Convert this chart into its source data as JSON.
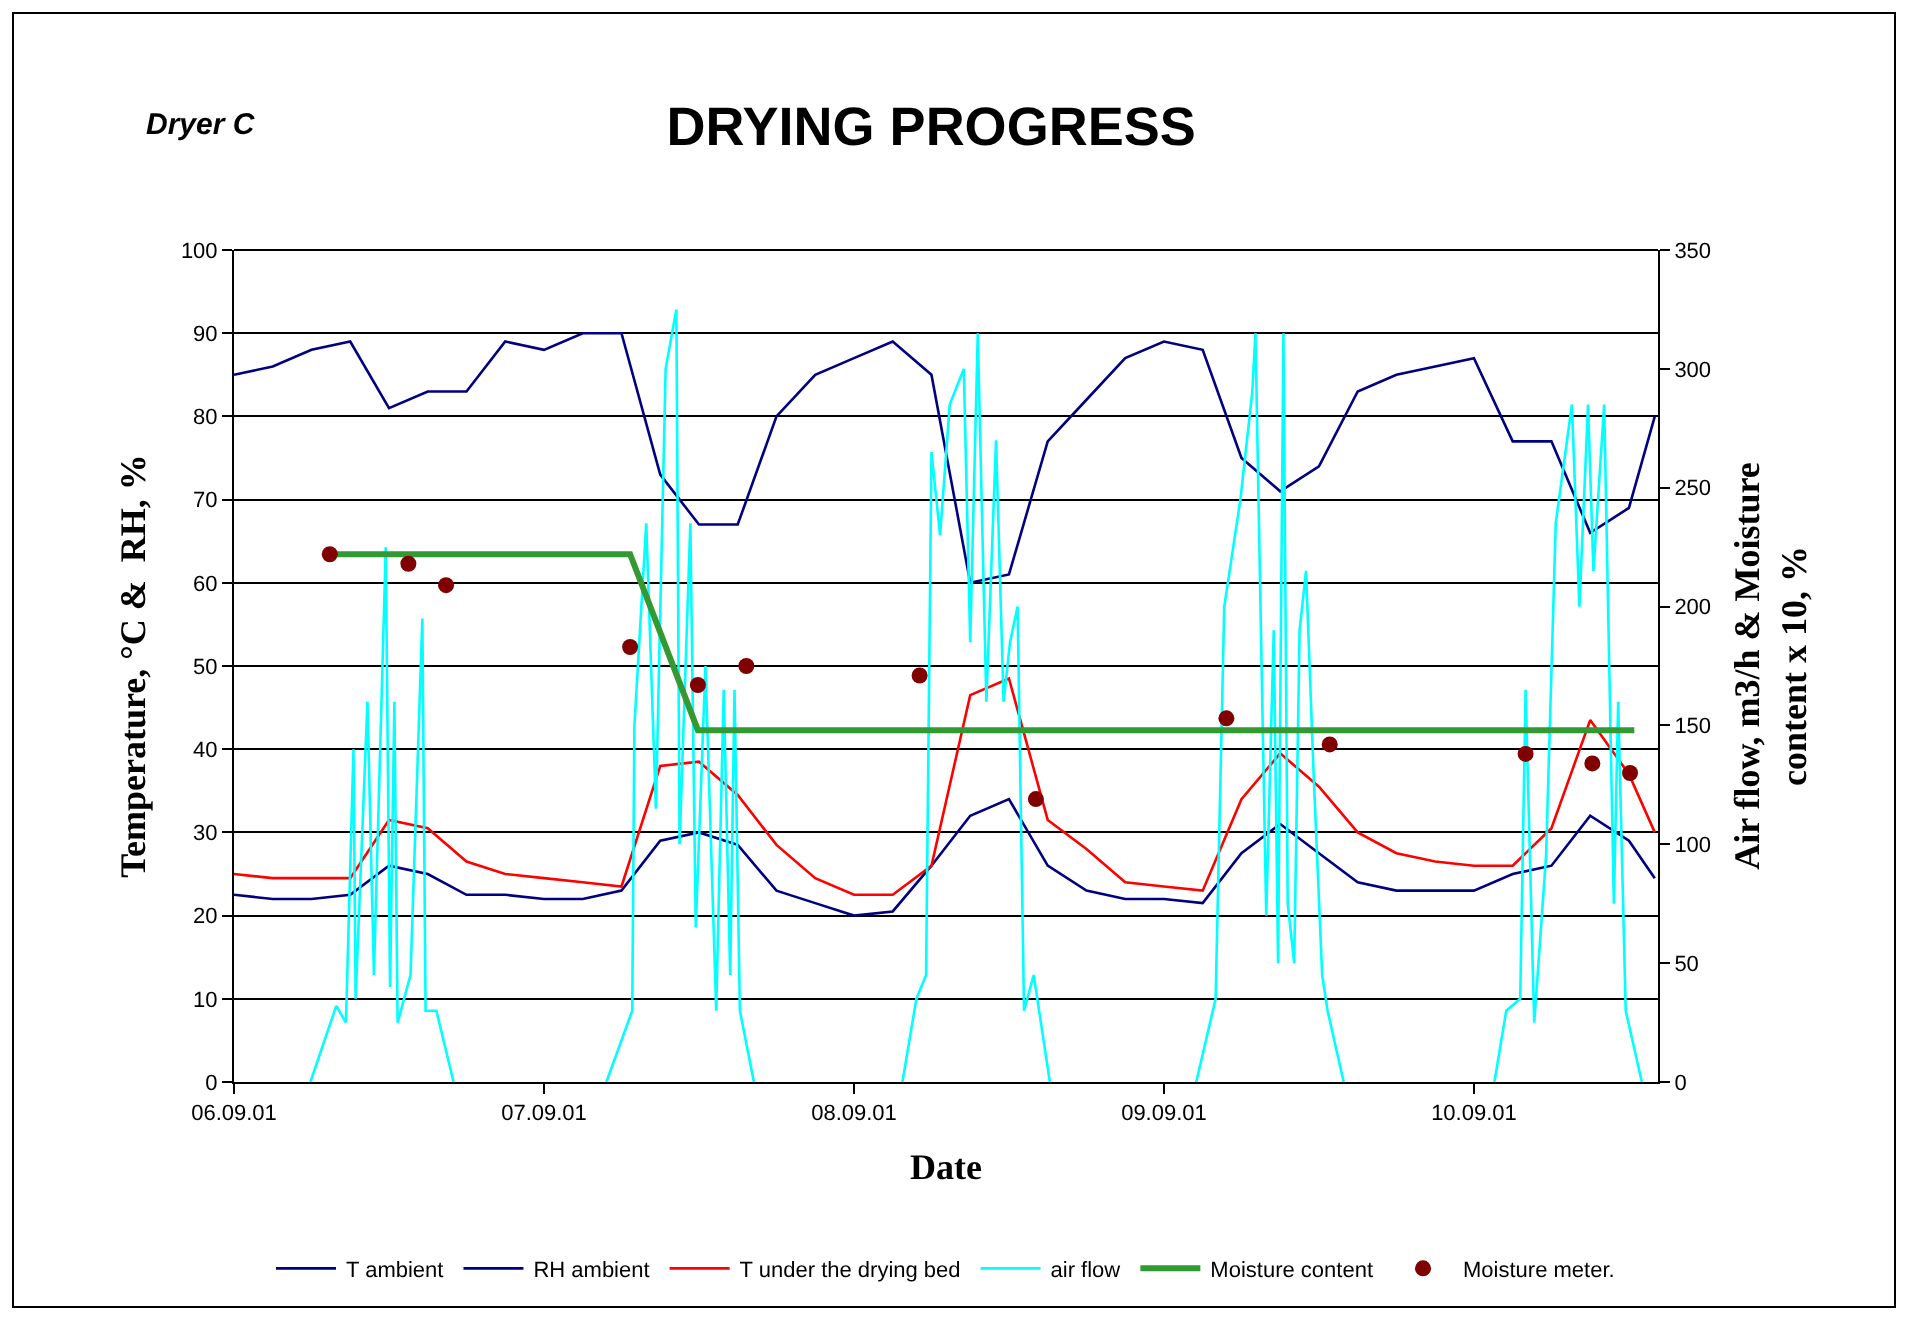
{
  "chart_data": {
    "type": "line",
    "title": "DRYING PROGRESS",
    "xlabel": "Date",
    "ylabel": "Temperature, °C &  RH, %",
    "y2label": "Air flow, m3/h & Moisture\ncontent x 10, %",
    "annotations": [
      "Dryer C"
    ],
    "x": [
      "--09-06T00:00",
      "--09-06T03:00",
      "--09-06T06:00",
      "--09-06T09:00",
      "--09-06T12:00",
      "--09-06T15:00",
      "--09-06T18:00",
      "--09-06T21:00",
      "--09-07T00:00",
      "--09-07T03:00",
      "--09-07T06:00",
      "--09-07T09:00",
      "--09-07T12:00",
      "--09-07T15:00",
      "--09-07T18:00",
      "--09-07T21:00",
      "--09-08T00:00",
      "--09-08T03:00",
      "--09-08T06:00",
      "--09-08T09:00",
      "--09-08T12:00",
      "--09-08T15:00",
      "--09-08T18:00",
      "--09-08T21:00",
      "--09-09T00:00",
      "--09-09T03:00",
      "--09-09T06:00",
      "--09-09T09:00",
      "--09-09T12:00",
      "--09-09T15:00",
      "--09-09T18:00",
      "--09-09T21:00",
      "--09-10T00:00",
      "--09-10T03:00",
      "--09-10T06:00",
      "--09-10T09:00",
      "--09-10T12:00",
      "--09-10T14:00"
    ],
    "series": [
      {
        "name": "T ambient",
        "color": "#000080",
        "values": [
          22.5,
          22,
          22,
          22.5,
          26,
          25,
          22.5,
          22.5,
          22,
          22,
          23,
          29,
          30,
          28.5,
          23,
          21.5,
          20,
          20.5,
          26,
          32,
          34,
          26,
          23,
          22,
          22,
          21.5,
          27.5,
          31,
          27.5,
          24,
          23,
          23,
          23,
          25,
          26,
          32,
          29,
          24.5
        ]
      },
      {
        "name": "RH ambient",
        "color": "#000080",
        "values": [
          85,
          86,
          88,
          89,
          81,
          83,
          83,
          89,
          88,
          90,
          90,
          73,
          67,
          67,
          80,
          85,
          87,
          89,
          85,
          60,
          61,
          77,
          82,
          87,
          89,
          88,
          75,
          71,
          74,
          83,
          85,
          86,
          87,
          77,
          77,
          66,
          69,
          80
        ]
      },
      {
        "name": "T under the drying bed",
        "color": "#ff0000",
        "values": [
          25,
          24.5,
          24.5,
          24.5,
          31.5,
          30.5,
          26.5,
          25,
          24.5,
          24,
          23.5,
          38,
          38.5,
          34.5,
          28.5,
          24.5,
          22.5,
          22.5,
          26,
          46.5,
          48.5,
          31.5,
          28,
          24,
          23.5,
          23,
          34,
          39.5,
          35.5,
          30,
          27.5,
          26.5,
          26,
          26,
          30.5,
          43.5,
          37,
          30
        ]
      },
      {
        "name": "air flow",
        "color": "#00ffff",
        "axis": "y2",
        "x": [
          "--09-06T05:55",
          "--09-06T07:55",
          "--09-06T08:40",
          "--09-06T09:15",
          "--09-06T09:25",
          "--09-06T10:20",
          "--09-06T10:50",
          "--09-06T11:45",
          "--09-06T12:05",
          "--09-06T12:25",
          "--09-06T12:40",
          "--09-06T13:40",
          "--09-06T14:35",
          "--09-06T14:50",
          "--09-06T15:40",
          "--09-06T17:00",
          "--09-07T00:00",
          "--09-07T04:50",
          "--09-07T06:50",
          "--09-07T07:00",
          "--09-07T07:55",
          "--09-07T08:40",
          "--09-07T09:25",
          "--09-07T10:15",
          "--09-07T10:30",
          "--09-07T11:20",
          "--09-07T11:45",
          "--09-07T12:30",
          "--09-07T13:20",
          "--09-07T13:55",
          "--09-07T14:25",
          "--09-07T14:45",
          "--09-07T15:10",
          "--09-07T16:15",
          "--09-08T00:00",
          "--09-08T03:45",
          "--09-08T04:50",
          "--09-08T05:35",
          "--09-08T06:00",
          "--09-08T06:40",
          "--09-08T07:25",
          "--09-08T08:30",
          "--09-08T09:00",
          "--09-08T09:35",
          "--09-08T10:15",
          "--09-08T11:00",
          "--09-08T11:35",
          "--09-08T12:05",
          "--09-08T12:40",
          "--09-08T13:10",
          "--09-08T13:55",
          "--09-08T15:10",
          "--09-09T00:00",
          "--09-09T02:30",
          "--09-09T04:00",
          "--09-09T04:40",
          "--09-09T05:55",
          "--09-09T06:50",
          "--09-09T07:05",
          "--09-09T07:55",
          "--09-09T08:30",
          "--09-09T08:50",
          "--09-09T09:15",
          "--09-09T09:35",
          "--09-09T10:05",
          "--09-09T10:30",
          "--09-09T11:00",
          "--09-09T11:35",
          "--09-09T12:15",
          "--09-09T12:40",
          "--09-09T13:55",
          "--09-10T00:00",
          "--09-10T01:35",
          "--09-10T02:30",
          "--09-10T03:35",
          "--09-10T04:00",
          "--09-10T04:40",
          "--09-10T05:35",
          "--09-10T06:20",
          "--09-10T07:35",
          "--09-10T08:10",
          "--09-10T08:50",
          "--09-10T09:15",
          "--09-10T10:05",
          "--09-10T10:50",
          "--09-10T11:10",
          "--09-10T11:45",
          "--09-10T13:00"
        ],
        "values": [
          0,
          32,
          25,
          140,
          35,
          160,
          45,
          225,
          40,
          160,
          25,
          45,
          195,
          30,
          30,
          0,
          null,
          0,
          30,
          150,
          235,
          115,
          300,
          325,
          100,
          235,
          65,
          175,
          30,
          165,
          45,
          165,
          30,
          0,
          null,
          0,
          35,
          45,
          265,
          230,
          285,
          300,
          185,
          315,
          160,
          270,
          160,
          185,
          200,
          30,
          45,
          0,
          null,
          0,
          35,
          200,
          245,
          290,
          315,
          70,
          190,
          50,
          315,
          75,
          50,
          190,
          215,
          130,
          45,
          30,
          0,
          null,
          0,
          30,
          35,
          165,
          25,
          95,
          235,
          285,
          200,
          285,
          215,
          285,
          75,
          160,
          30,
          0
        ]
      },
      {
        "name": "Moisture content",
        "color": "#339933",
        "axis": "y2",
        "x": [
          "--09-06T07:25",
          "--09-07T06:40",
          "--09-07T11:55",
          "--09-10T12:25"
        ],
        "values": [
          222,
          222,
          148,
          148
        ]
      },
      {
        "name": "Moisture meter.",
        "type": "scatter",
        "marker": "circle",
        "color": "#800000",
        "axis": "y2",
        "x": [
          "--09-06T07:25",
          "--09-06T13:30",
          "--09-06T16:25",
          "--09-07T06:40",
          "--09-07T11:55",
          "--09-07T15:40",
          "--09-08T05:05",
          "--09-08T14:05",
          "--09-09T04:50",
          "--09-09T12:50",
          "--09-10T04:00",
          "--09-10T09:10",
          "--09-10T12:05"
        ],
        "values": [
          222,
          218,
          209,
          183,
          167,
          175,
          171,
          119,
          153,
          142,
          138,
          134,
          130
        ]
      }
    ],
    "xlim": [
      "--09-06T00:00",
      "--09-10T14:15"
    ],
    "xticks": [
      {
        "value": "--09-06",
        "label": "06.09.01"
      },
      {
        "value": "--09-07",
        "label": "07.09.01"
      },
      {
        "value": "--09-08",
        "label": "08.09.01"
      },
      {
        "value": "--09-09",
        "label": "09.09.01"
      },
      {
        "value": "--09-10",
        "label": "10.09.01"
      }
    ],
    "ylim": [
      0,
      100
    ],
    "yticks": [
      0,
      10,
      20,
      30,
      40,
      50,
      60,
      70,
      80,
      90,
      100
    ],
    "y2lim": [
      0,
      350
    ],
    "y2ticks": [
      0,
      50,
      100,
      150,
      200,
      250,
      300,
      350
    ],
    "grid": "y",
    "legend": "bottom",
    "marker": "none"
  }
}
